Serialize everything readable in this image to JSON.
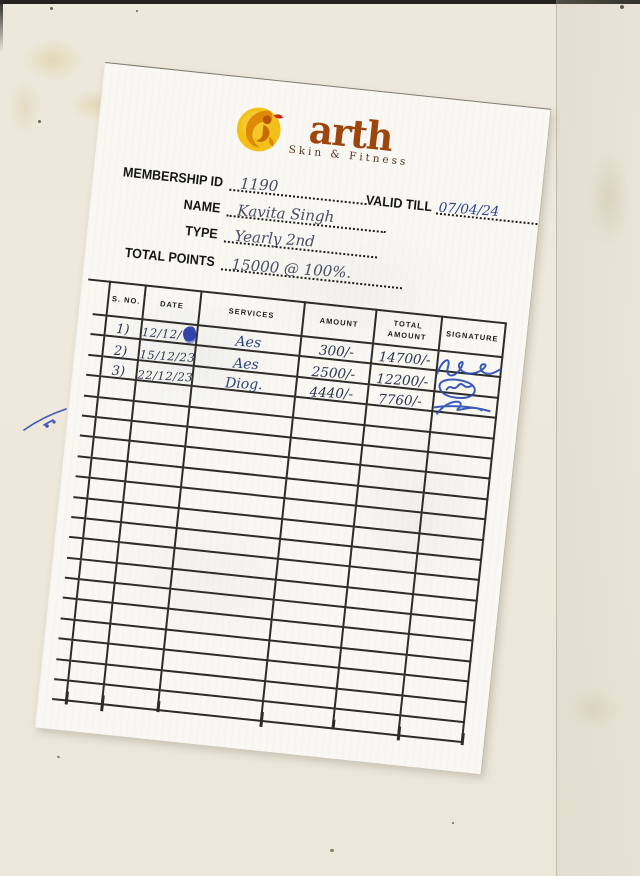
{
  "logo": {
    "brand": "arth",
    "tagline": "Skin & Fitness",
    "icon": "woman-fitness-icon"
  },
  "colors": {
    "brand_text": "#9c450c",
    "logo_gold": "#f2bd13",
    "logo_orange": "#d97708",
    "ink_blue": "#2d4db1",
    "ink_dark": "#2c3550",
    "table_line": "#2e2b28",
    "paper": "#f9f8f3",
    "scan_background": "#ece8db"
  },
  "form": {
    "fields": [
      {
        "label": "MEMBERSHIP ID",
        "value": "1190"
      },
      {
        "label": "NAME",
        "value": "Kavita Singh"
      },
      {
        "label": "TYPE",
        "value": "Yearly 2nd"
      },
      {
        "label": "TOTAL POINTS",
        "value": "15000 @ 100%."
      }
    ],
    "valid_till": {
      "label": "VALID TILL",
      "value": "07/04/24"
    }
  },
  "table": {
    "headers": [
      "S. NO.",
      "DATE",
      "SERVICES",
      "AMOUNT",
      "TOTAL AMOUNT",
      "SIGNATURE"
    ],
    "rows": [
      {
        "sno": "1)",
        "date": "12/12/",
        "ink_blot": true,
        "services": "Aes",
        "amount": "300/-",
        "total_amount": "14700/-",
        "signature": "scribble"
      },
      {
        "sno": "2)",
        "date": "15/12/23",
        "services": "Aes",
        "amount": "2500/-",
        "total_amount": "12200/-",
        "signature": "scribble"
      },
      {
        "sno": "3)",
        "date": "22/12/23",
        "services": "Diog.",
        "amount": "4440/-",
        "total_amount": "7760/-",
        "signature": "scribble"
      }
    ],
    "empty_row_count": 16
  }
}
